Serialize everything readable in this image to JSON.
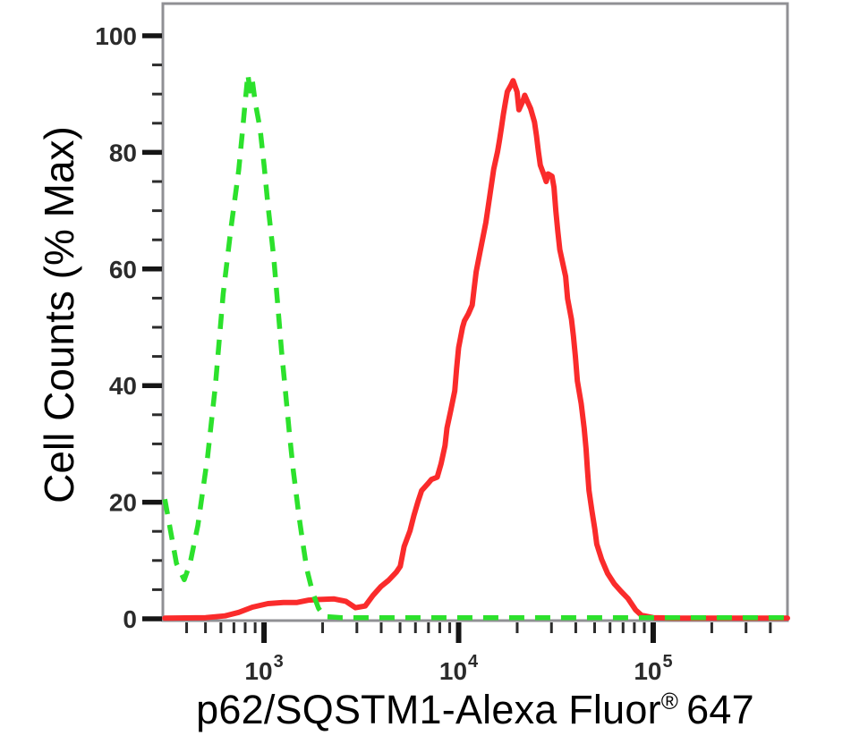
{
  "figure": {
    "y_axis_title": "Cell Counts (% Max)",
    "x_axis_title": {
      "main": "p62/SQSTM1-Alexa Fluor",
      "registered": "®",
      "suffix": "647"
    }
  },
  "colors": {
    "control_green": "#2CE12C",
    "stained_red": "#FA2B2B",
    "plot_border": "#909094",
    "tick_major": "#151515",
    "tick_minor": "#2c2c2c",
    "tick_label": "#2b2b2b",
    "title_text": "#000000"
  },
  "chart_data": {
    "type": "line",
    "title": "",
    "xlabel": "p62/SQSTM1-Alexa Fluor® 647",
    "ylabel": "Cell Counts (% Max)",
    "x_scale": "log10",
    "x_range_log10": [
      2.48,
      5.69
    ],
    "ylim": [
      0,
      105
    ],
    "grid": false,
    "legend": "none",
    "x_major_ticks": [
      {
        "base": "10",
        "exp": "3",
        "log10": 3
      },
      {
        "base": "10",
        "exp": "4",
        "log10": 4
      },
      {
        "base": "10",
        "exp": "5",
        "log10": 5
      }
    ],
    "y_major_ticks": [
      {
        "label": "0",
        "value": 0
      },
      {
        "label": "20",
        "value": 20
      },
      {
        "label": "40",
        "value": 40
      },
      {
        "label": "60",
        "value": 60
      },
      {
        "label": "80",
        "value": 80
      },
      {
        "label": "100",
        "value": 100
      }
    ],
    "y_minor_step": 5,
    "series": [
      {
        "name": "red-solid",
        "style": "solid",
        "color": "#FA2B2B",
        "points": [
          [
            2.49,
            0.1
          ],
          [
            2.7,
            0.2
          ],
          [
            2.8,
            0.5
          ],
          [
            2.87,
            1.1
          ],
          [
            2.94,
            2.0
          ],
          [
            3.02,
            2.6
          ],
          [
            3.1,
            2.8
          ],
          [
            3.17,
            2.8
          ],
          [
            3.23,
            3.2
          ],
          [
            3.27,
            3.3
          ],
          [
            3.36,
            3.4
          ],
          [
            3.42,
            3.0
          ],
          [
            3.47,
            1.9
          ],
          [
            3.52,
            2.2
          ],
          [
            3.56,
            4.0
          ],
          [
            3.6,
            5.5
          ],
          [
            3.64,
            6.6
          ],
          [
            3.68,
            8.0
          ],
          [
            3.7,
            9.0
          ],
          [
            3.72,
            12.4
          ],
          [
            3.75,
            15.1
          ],
          [
            3.77,
            17.7
          ],
          [
            3.79,
            20.0
          ],
          [
            3.81,
            22.0
          ],
          [
            3.84,
            23.1
          ],
          [
            3.86,
            23.9
          ],
          [
            3.89,
            24.3
          ],
          [
            3.91,
            26.6
          ],
          [
            3.93,
            29.7
          ],
          [
            3.94,
            32.7
          ],
          [
            3.96,
            35.8
          ],
          [
            3.98,
            39.1
          ],
          [
            3.99,
            43.0
          ],
          [
            4.0,
            46.5
          ],
          [
            4.02,
            50.0
          ],
          [
            4.03,
            51.1
          ],
          [
            4.05,
            52.3
          ],
          [
            4.07,
            53.8
          ],
          [
            4.08,
            56.7
          ],
          [
            4.09,
            59.5
          ],
          [
            4.11,
            62.9
          ],
          [
            4.14,
            68.0
          ],
          [
            4.16,
            72.5
          ],
          [
            4.18,
            77.1
          ],
          [
            4.2,
            80.1
          ],
          [
            4.21,
            82.1
          ],
          [
            4.22,
            84.3
          ],
          [
            4.23,
            86.5
          ],
          [
            4.24,
            88.5
          ],
          [
            4.25,
            90.4
          ],
          [
            4.27,
            91.6
          ],
          [
            4.28,
            92.3
          ],
          [
            4.3,
            90.4
          ],
          [
            4.31,
            87.3
          ],
          [
            4.33,
            88.8
          ],
          [
            4.34,
            89.8
          ],
          [
            4.35,
            89.0
          ],
          [
            4.37,
            87.5
          ],
          [
            4.39,
            85.2
          ],
          [
            4.4,
            82.9
          ],
          [
            4.41,
            80.1
          ],
          [
            4.42,
            77.8
          ],
          [
            4.44,
            76.0
          ],
          [
            4.45,
            75.0
          ],
          [
            4.46,
            76.3
          ],
          [
            4.48,
            75.9
          ],
          [
            4.49,
            74.0
          ],
          [
            4.5,
            69.9
          ],
          [
            4.51,
            66.4
          ],
          [
            4.52,
            63.3
          ],
          [
            4.55,
            58.7
          ],
          [
            4.56,
            54.9
          ],
          [
            4.58,
            51.4
          ],
          [
            4.59,
            48.5
          ],
          [
            4.6,
            45.0
          ],
          [
            4.61,
            40.8
          ],
          [
            4.63,
            36.9
          ],
          [
            4.645,
            32.7
          ],
          [
            4.655,
            29.2
          ],
          [
            4.662,
            25.5
          ],
          [
            4.67,
            22.0
          ],
          [
            4.685,
            18.5
          ],
          [
            4.7,
            15.4
          ],
          [
            4.71,
            12.8
          ],
          [
            4.735,
            10.2
          ],
          [
            4.765,
            7.8
          ],
          [
            4.8,
            6.0
          ],
          [
            4.835,
            4.7
          ],
          [
            4.87,
            3.5
          ],
          [
            4.91,
            1.5
          ],
          [
            4.94,
            0.6
          ],
          [
            5.0,
            0.2
          ],
          [
            5.1,
            0.1
          ],
          [
            5.69,
            0.1
          ]
        ]
      },
      {
        "name": "green-dashed",
        "style": "dashed",
        "color": "#2CE12C",
        "points": [
          [
            2.49,
            20.5
          ],
          [
            2.52,
            15.0
          ],
          [
            2.55,
            9.5
          ],
          [
            2.59,
            6.7
          ],
          [
            2.62,
            9.5
          ],
          [
            2.66,
            16.0
          ],
          [
            2.71,
            27.8
          ],
          [
            2.75,
            40.0
          ],
          [
            2.79,
            55.7
          ],
          [
            2.83,
            67.0
          ],
          [
            2.87,
            77.0
          ],
          [
            2.89,
            84.0
          ],
          [
            2.9,
            87.5
          ],
          [
            2.917,
            93.4
          ],
          [
            2.928,
            90.5
          ],
          [
            2.94,
            92.3
          ],
          [
            2.955,
            88.5
          ],
          [
            2.98,
            84.0
          ],
          [
            3.0,
            77.8
          ],
          [
            3.02,
            71.0
          ],
          [
            3.05,
            62.0
          ],
          [
            3.07,
            54.0
          ],
          [
            3.09,
            46.0
          ],
          [
            3.11,
            39.0
          ],
          [
            3.13,
            32.0
          ],
          [
            3.15,
            25.5
          ],
          [
            3.18,
            17.5
          ],
          [
            3.2,
            12.8
          ],
          [
            3.22,
            8.5
          ],
          [
            3.25,
            4.5
          ],
          [
            3.28,
            1.8
          ],
          [
            3.31,
            0.4
          ],
          [
            3.4,
            0.2
          ],
          [
            5.69,
            0.2
          ]
        ]
      }
    ]
  }
}
